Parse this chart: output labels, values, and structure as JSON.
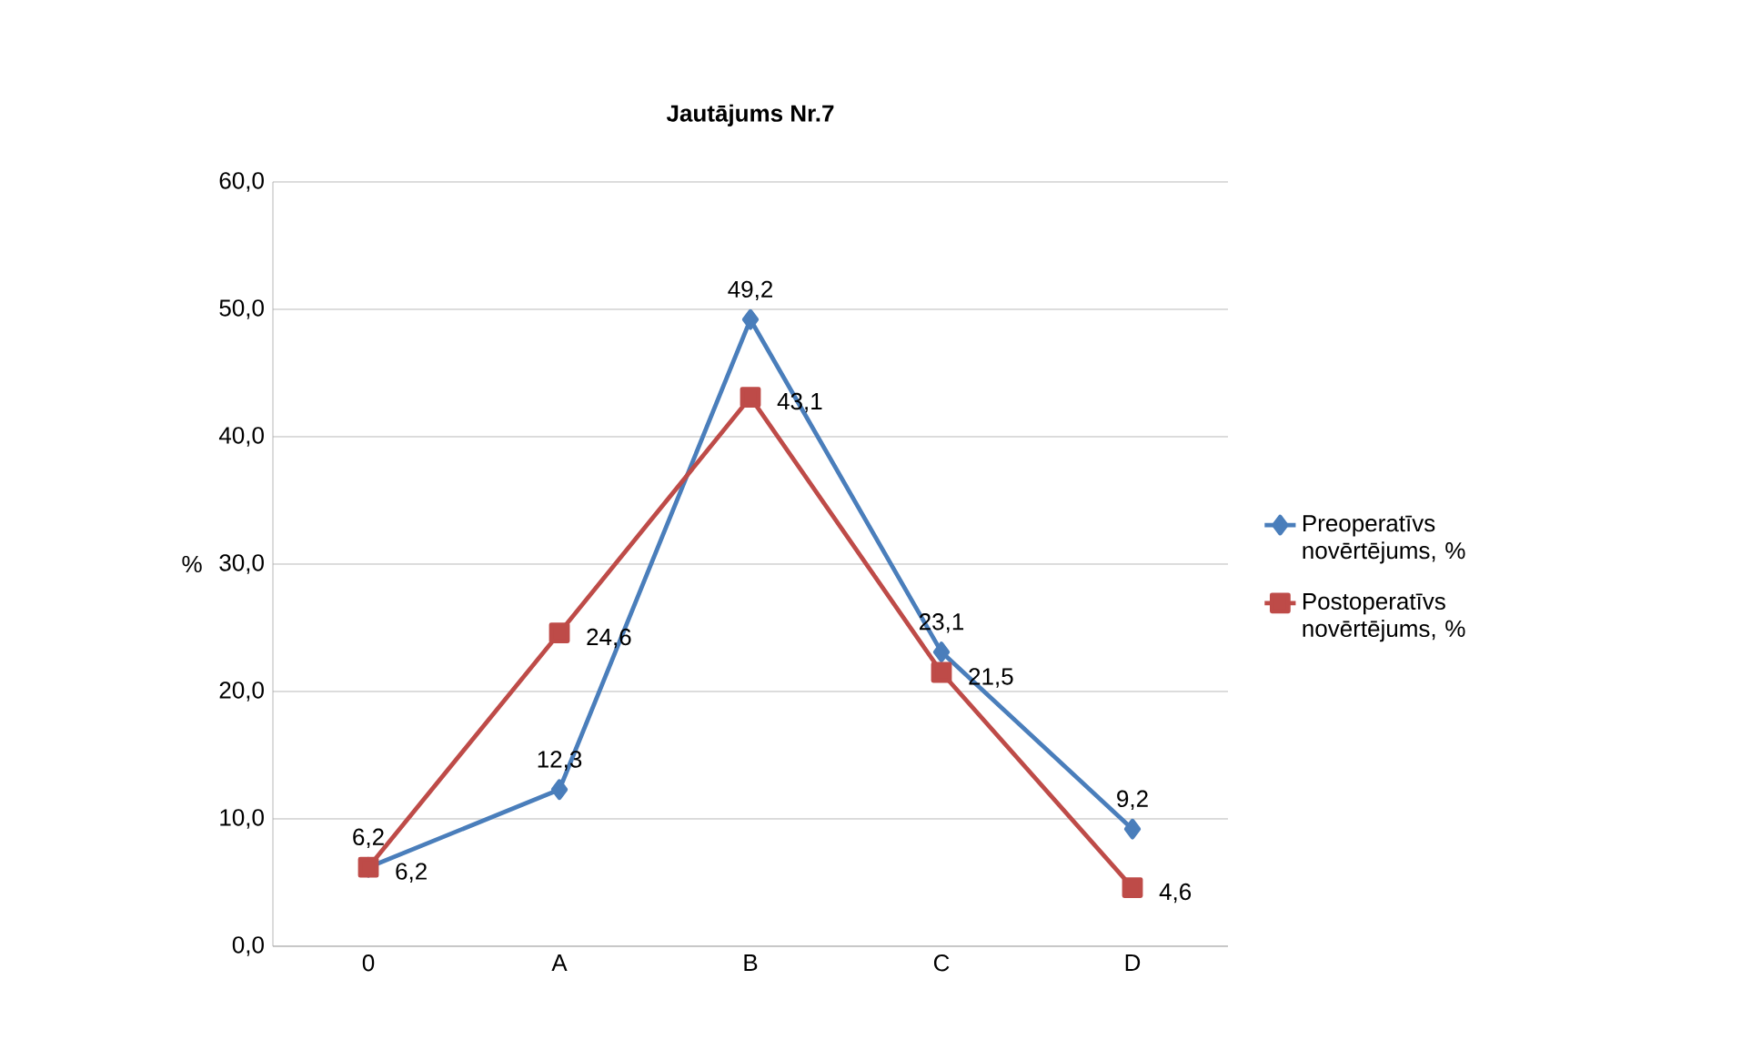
{
  "chart_data": {
    "type": "line",
    "title": "Jautājums Nr.7",
    "ylabel": "%",
    "categories": [
      "0",
      "A",
      "B",
      "C",
      "D"
    ],
    "series": [
      {
        "name": "Preoperatīvs novērtējums, %",
        "color": "#4a7ebb",
        "marker": "diamond",
        "values": [
          6.2,
          12.3,
          49.2,
          23.1,
          9.2
        ],
        "value_labels": [
          "6,2",
          "12,3",
          "49,2",
          "23,1",
          "9,2"
        ]
      },
      {
        "name": "Postoperatīvs novērtējums, %",
        "color": "#be4b48",
        "marker": "square",
        "values": [
          6.2,
          24.6,
          43.1,
          21.5,
          4.6
        ],
        "value_labels": [
          "6,2",
          "24,6",
          "43,1",
          "21,5",
          "4,6"
        ]
      }
    ],
    "ylim": [
      0,
      60
    ],
    "yticks": [
      {
        "value": 0,
        "label": "0,0"
      },
      {
        "value": 10,
        "label": "10,0"
      },
      {
        "value": 20,
        "label": "20,0"
      },
      {
        "value": 30,
        "label": "30,0"
      },
      {
        "value": 40,
        "label": "40,0"
      },
      {
        "value": 50,
        "label": "50,0"
      },
      {
        "value": 60,
        "label": "60,0"
      }
    ],
    "grid": "y",
    "legend": "right",
    "line_style": "solid"
  }
}
